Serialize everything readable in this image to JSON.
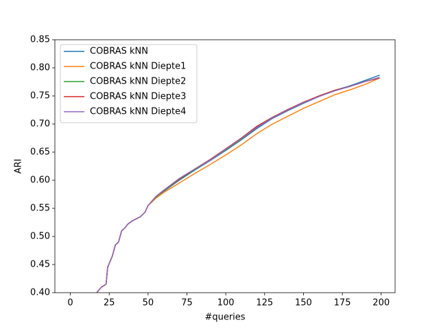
{
  "chart_data": {
    "type": "line",
    "xlabel": "#queries",
    "ylabel": "ARI",
    "x": [
      17,
      20,
      23,
      24,
      27,
      29,
      31,
      33,
      35,
      37,
      40,
      45,
      48,
      50,
      55,
      60,
      70,
      80,
      90,
      100,
      110,
      120,
      130,
      140,
      150,
      160,
      170,
      180,
      190,
      199
    ],
    "series": [
      {
        "name": "COBRAS kNN",
        "color": "#1f77b4",
        "values": [
          0.4,
          0.41,
          0.415,
          0.445,
          0.465,
          0.485,
          0.49,
          0.51,
          0.515,
          0.522,
          0.528,
          0.535,
          0.543,
          0.555,
          0.57,
          0.58,
          0.6,
          0.618,
          0.635,
          0.653,
          0.672,
          0.692,
          0.71,
          0.724,
          0.737,
          0.749,
          0.76,
          0.768,
          0.778,
          0.787
        ]
      },
      {
        "name": "COBRAS kNN Diepte1",
        "color": "#ff7f0e",
        "values": [
          0.4,
          0.41,
          0.415,
          0.445,
          0.465,
          0.485,
          0.49,
          0.51,
          0.515,
          0.522,
          0.528,
          0.535,
          0.543,
          0.555,
          0.568,
          0.578,
          0.595,
          0.612,
          0.628,
          0.645,
          0.663,
          0.683,
          0.7,
          0.714,
          0.728,
          0.74,
          0.752,
          0.761,
          0.771,
          0.782
        ]
      },
      {
        "name": "COBRAS kNN Diepte2",
        "color": "#2ca02c",
        "values": [
          0.4,
          0.41,
          0.415,
          0.445,
          0.465,
          0.485,
          0.49,
          0.51,
          0.515,
          0.522,
          0.528,
          0.535,
          0.543,
          0.555,
          0.57,
          0.581,
          0.601,
          0.619,
          0.636,
          0.654,
          0.673,
          0.694,
          0.711,
          0.725,
          0.738,
          0.75,
          0.76,
          0.767,
          0.776,
          0.783
        ]
      },
      {
        "name": "COBRAS kNN Diepte3",
        "color": "#d62728",
        "values": [
          0.4,
          0.41,
          0.415,
          0.445,
          0.465,
          0.485,
          0.49,
          0.51,
          0.515,
          0.522,
          0.528,
          0.535,
          0.543,
          0.555,
          0.571,
          0.582,
          0.602,
          0.62,
          0.637,
          0.656,
          0.675,
          0.696,
          0.712,
          0.726,
          0.739,
          0.75,
          0.76,
          0.767,
          0.776,
          0.782
        ]
      },
      {
        "name": "COBRAS kNN Diepte4",
        "color": "#9467bd",
        "values": [
          0.4,
          0.41,
          0.415,
          0.445,
          0.465,
          0.485,
          0.49,
          0.51,
          0.515,
          0.522,
          0.528,
          0.535,
          0.543,
          0.555,
          0.571,
          0.582,
          0.603,
          0.62,
          0.636,
          0.655,
          0.674,
          0.694,
          0.711,
          0.725,
          0.738,
          0.749,
          0.759,
          0.767,
          0.776,
          0.783
        ]
      }
    ],
    "xlim": [
      -9.95,
      208.95
    ],
    "xticks": [
      0,
      25,
      50,
      75,
      100,
      125,
      150,
      175,
      200
    ],
    "ylim": [
      0.4,
      0.85
    ],
    "yticks": [
      {
        "value": 0.4,
        "label": "0.40"
      },
      0.45,
      {
        "value": 0.5,
        "label": "0.50"
      },
      0.55,
      {
        "value": 0.6,
        "label": "0.60"
      },
      0.65,
      {
        "value": 0.7,
        "label": "0.70"
      },
      0.75,
      {
        "value": 0.8,
        "label": "0.80"
      },
      0.85
    ],
    "legend": "upper left",
    "grid": false
  }
}
